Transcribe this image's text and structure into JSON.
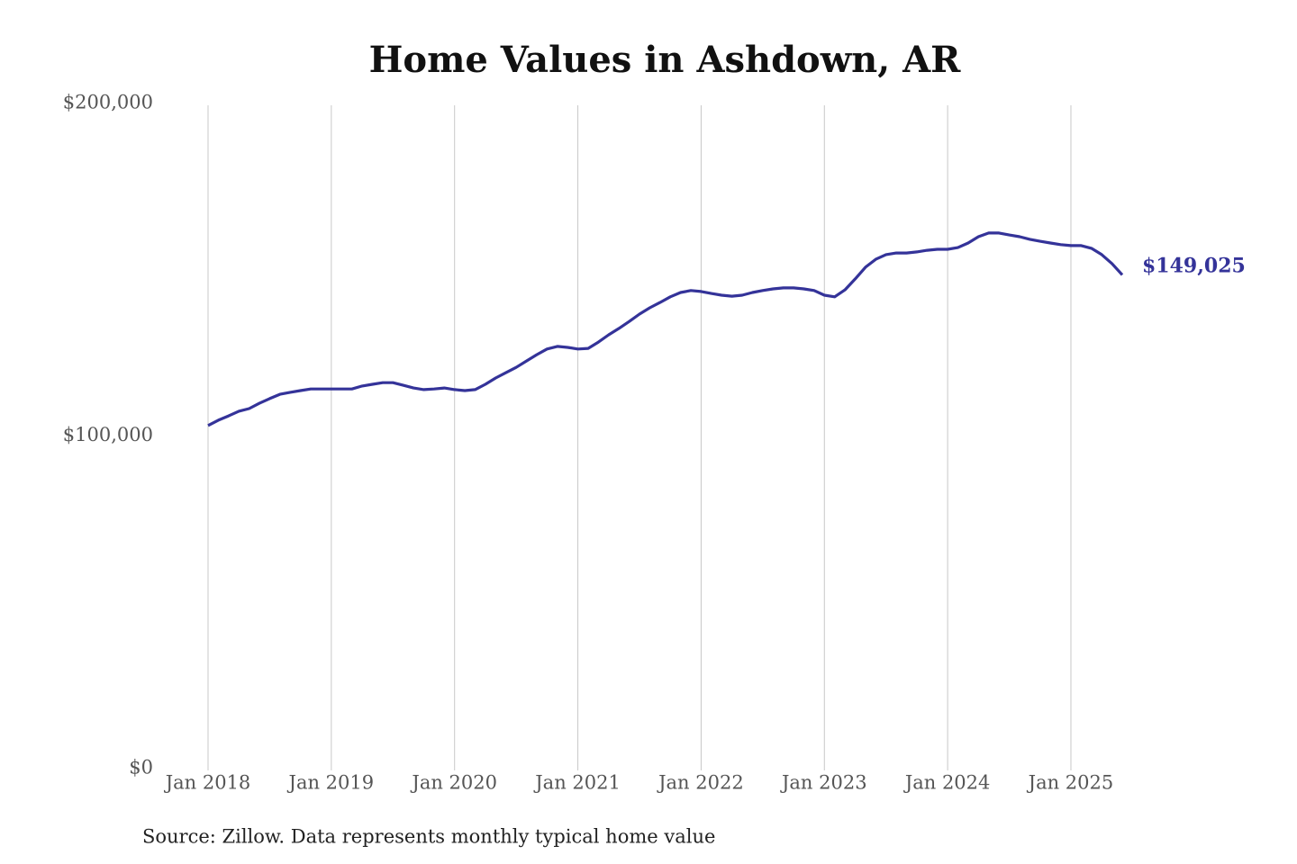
{
  "chart_data": {
    "type": "line",
    "title": "Home Values in Ashdown, AR",
    "source": "Source: Zillow. Data represents monthly typical home value",
    "color": "#343399",
    "x": [
      "Jan 2018",
      "Feb 2018",
      "Mar 2018",
      "Apr 2018",
      "May 2018",
      "Jun 2018",
      "Jul 2018",
      "Aug 2018",
      "Sep 2018",
      "Oct 2018",
      "Nov 2018",
      "Dec 2018",
      "Jan 2019",
      "Feb 2019",
      "Mar 2019",
      "Apr 2019",
      "May 2019",
      "Jun 2019",
      "Jul 2019",
      "Aug 2019",
      "Sep 2019",
      "Oct 2019",
      "Nov 2019",
      "Dec 2019",
      "Jan 2020",
      "Feb 2020",
      "Mar 2020",
      "Apr 2020",
      "May 2020",
      "Jun 2020",
      "Jul 2020",
      "Aug 2020",
      "Sep 2020",
      "Oct 2020",
      "Nov 2020",
      "Dec 2020",
      "Jan 2021",
      "Feb 2021",
      "Mar 2021",
      "Apr 2021",
      "May 2021",
      "Jun 2021",
      "Jul 2021",
      "Aug 2021",
      "Sep 2021",
      "Oct 2021",
      "Nov 2021",
      "Dec 2021",
      "Jan 2022",
      "Feb 2022",
      "Mar 2022",
      "Apr 2022",
      "May 2022",
      "Jun 2022",
      "Jul 2022",
      "Aug 2022",
      "Sep 2022",
      "Oct 2022",
      "Nov 2022",
      "Dec 2022",
      "Jan 2023",
      "Feb 2023",
      "Mar 2023",
      "Apr 2023",
      "May 2023",
      "Jun 2023",
      "Jul 2023",
      "Aug 2023",
      "Sep 2023",
      "Oct 2023",
      "Nov 2023",
      "Dec 2023",
      "Jan 2024",
      "Feb 2024",
      "Mar 2024",
      "Apr 2024",
      "May 2024",
      "Jun 2024",
      "Jul 2024",
      "Aug 2024",
      "Sep 2024",
      "Oct 2024",
      "Nov 2024",
      "Dec 2024",
      "Jan 2025",
      "Feb 2025",
      "Mar 2025",
      "Apr 2025",
      "May 2025",
      "Jun 2025"
    ],
    "values": [
      103700,
      105300,
      106600,
      108000,
      108800,
      110400,
      111800,
      113100,
      113700,
      114200,
      114700,
      114700,
      114700,
      114700,
      114700,
      115600,
      116100,
      116600,
      116600,
      115800,
      115000,
      114500,
      114700,
      115000,
      114500,
      114200,
      114500,
      116100,
      118000,
      119600,
      121200,
      123100,
      125000,
      126700,
      127500,
      127200,
      126700,
      126900,
      128800,
      131000,
      132900,
      135000,
      137200,
      139100,
      140700,
      142400,
      143700,
      144300,
      144000,
      143400,
      142900,
      142600,
      142900,
      143700,
      144300,
      144800,
      145100,
      145100,
      144800,
      144300,
      142900,
      142400,
      144500,
      147800,
      151300,
      153700,
      155100,
      155600,
      155600,
      155900,
      156400,
      156700,
      156700,
      157200,
      158600,
      160500,
      161600,
      161600,
      161000,
      160500,
      159700,
      159100,
      158600,
      158100,
      157800,
      157800,
      157000,
      155100,
      152400,
      149025
    ],
    "value_labels": [
      null,
      null,
      null,
      null,
      null,
      null,
      null,
      null,
      null,
      null,
      null,
      null,
      null,
      null,
      null,
      null,
      null,
      null,
      null,
      null,
      null,
      null,
      null,
      null,
      null,
      null,
      null,
      null,
      null,
      null,
      null,
      null,
      null,
      null,
      null,
      null,
      null,
      null,
      null,
      null,
      null,
      null,
      null,
      null,
      null,
      null,
      null,
      null,
      null,
      null,
      null,
      null,
      null,
      null,
      null,
      null,
      null,
      null,
      null,
      null,
      null,
      null,
      null,
      null,
      null,
      null,
      null,
      null,
      null,
      null,
      null,
      null,
      null,
      null,
      null,
      null,
      null,
      null,
      null,
      null,
      null,
      null,
      null,
      null,
      null,
      null,
      null,
      null,
      null,
      "$149,025"
    ],
    "ylim": [
      0,
      200000
    ],
    "yticks": [
      {
        "value": 0,
        "label": "$0"
      },
      {
        "value": 100000,
        "label": "$100,000"
      },
      {
        "value": 200000,
        "label": "$200,000"
      }
    ],
    "xticks": [
      "Jan 2018",
      "Jan 2019",
      "Jan 2020",
      "Jan 2021",
      "Jan 2022",
      "Jan 2023",
      "Jan 2024",
      "Jan 2025"
    ],
    "grid": "x"
  }
}
